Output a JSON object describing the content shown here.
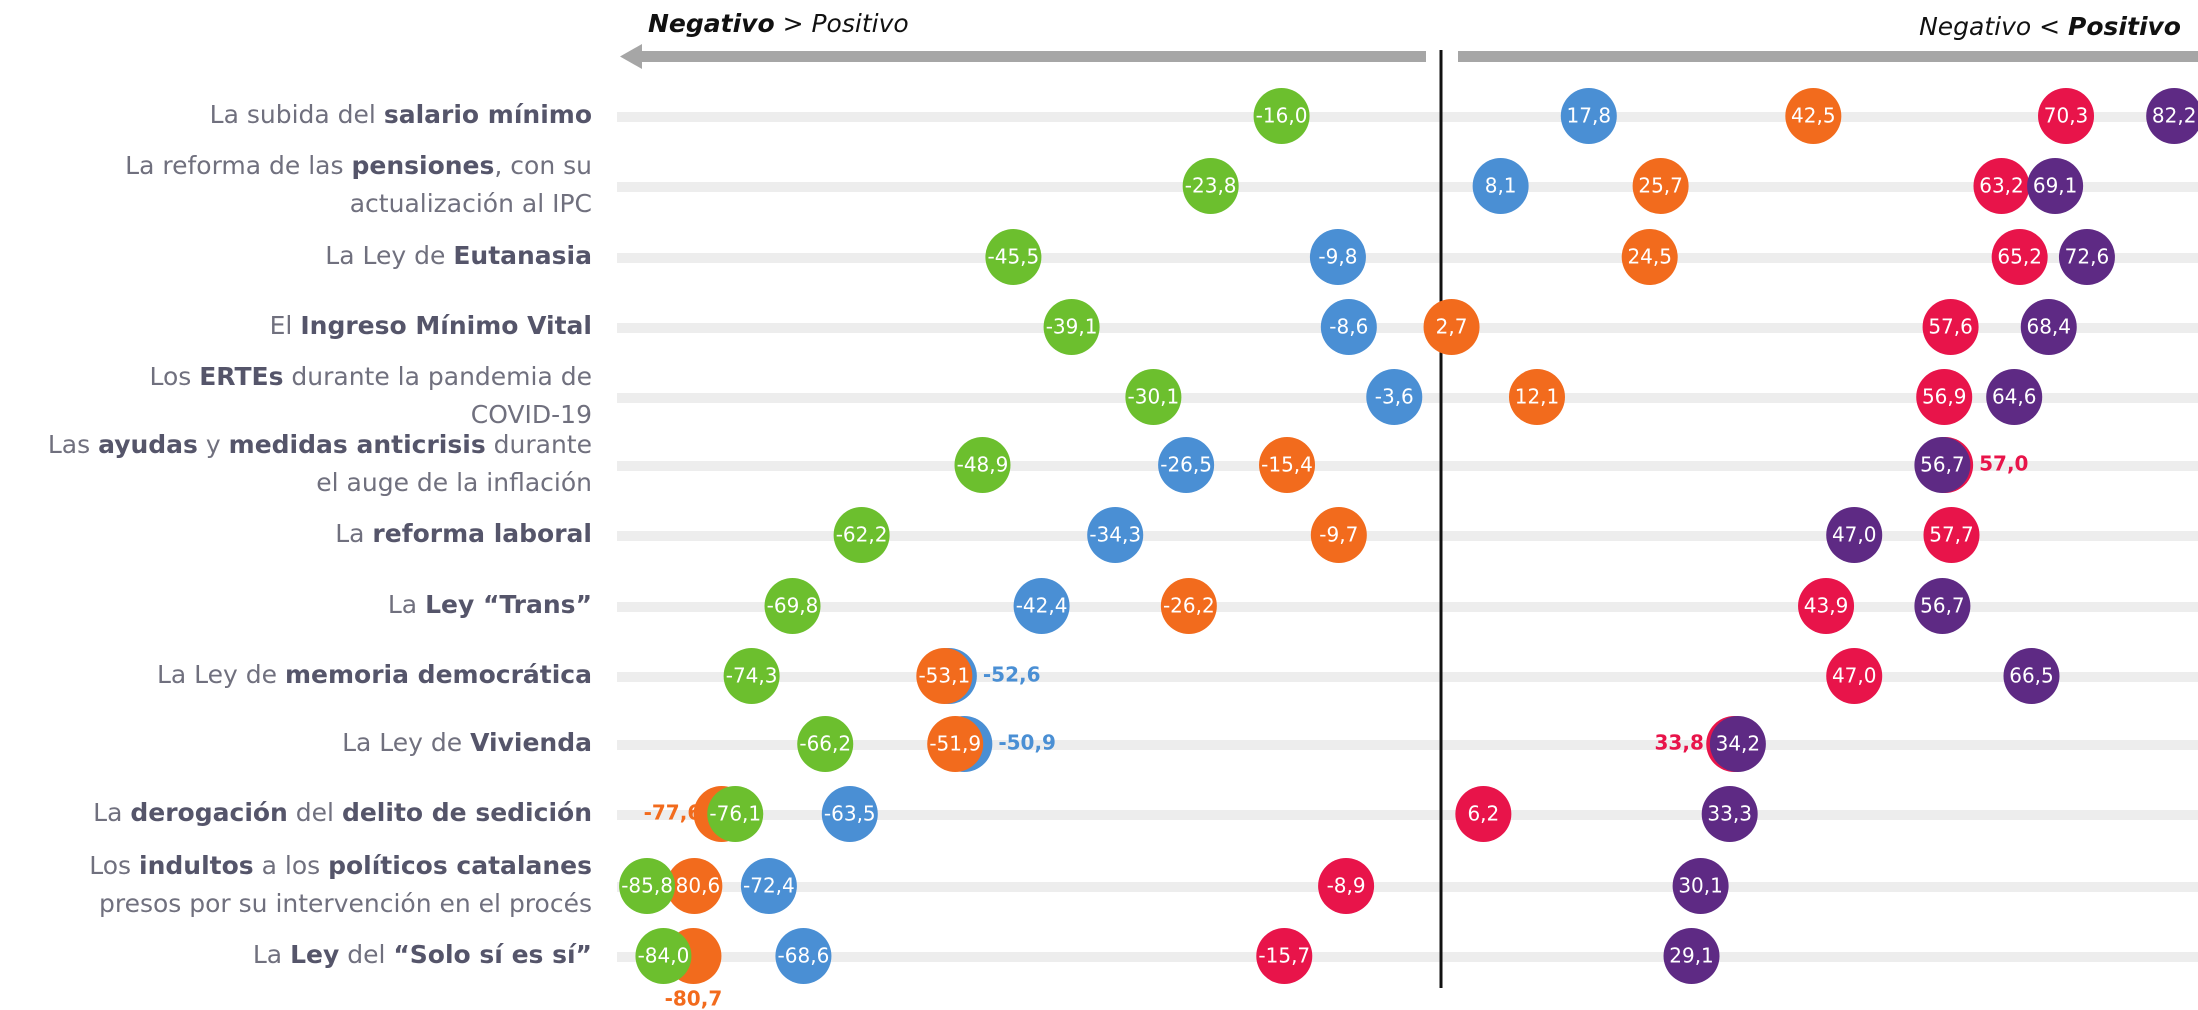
{
  "chart_data": {
    "type": "dot",
    "header_left": [
      {
        "text": "Negativo",
        "bold": true
      },
      {
        "text": " > Positivo"
      }
    ],
    "header_right": [
      {
        "text": "Negativo < "
      },
      {
        "text": "Positivo",
        "bold": true
      }
    ],
    "categories": [
      [
        [
          {
            "text": "La subida del "
          },
          {
            "text": "salario mínimo",
            "bold": true
          }
        ]
      ],
      [
        [
          {
            "text": "La reforma de las "
          },
          {
            "text": "pensiones",
            "bold": true
          },
          {
            "text": ", con su"
          }
        ],
        [
          {
            "text": "actualización al IPC"
          }
        ]
      ],
      [
        [
          {
            "text": "La Ley de "
          },
          {
            "text": "Eutanasia",
            "bold": true
          }
        ]
      ],
      [
        [
          {
            "text": "El "
          },
          {
            "text": "Ingreso Mínimo Vital",
            "bold": true
          }
        ]
      ],
      [
        [
          {
            "text": "Los "
          },
          {
            "text": "ERTEs",
            "bold": true
          },
          {
            "text": " durante la pandemia de"
          }
        ],
        [
          {
            "text": "COVID-19"
          }
        ]
      ],
      [
        [
          {
            "text": "Las "
          },
          {
            "text": "ayudas",
            "bold": true
          },
          {
            "text": " y "
          },
          {
            "text": "medidas anticrisis",
            "bold": true
          },
          {
            "text": " durante"
          }
        ],
        [
          {
            "text": "el auge de la inflación"
          }
        ]
      ],
      [
        [
          {
            "text": "La "
          },
          {
            "text": "reforma laboral",
            "bold": true
          }
        ]
      ],
      [
        [
          {
            "text": "La "
          },
          {
            "text": "Ley “Trans”",
            "bold": true
          }
        ]
      ],
      [
        [
          {
            "text": "La Ley de "
          },
          {
            "text": "memoria democrática",
            "bold": true
          }
        ]
      ],
      [
        [
          {
            "text": "La Ley de "
          },
          {
            "text": "Vivienda",
            "bold": true
          }
        ]
      ],
      [
        [
          {
            "text": "La "
          },
          {
            "text": "derogación",
            "bold": true
          },
          {
            "text": " del "
          },
          {
            "text": "delito de sedición",
            "bold": true
          }
        ]
      ],
      [
        [
          {
            "text": "Los "
          },
          {
            "text": "indultos",
            "bold": true
          },
          {
            "text": " a los "
          },
          {
            "text": "políticos catalanes",
            "bold": true
          }
        ],
        [
          {
            "text": "presos por su intervención en el procés"
          }
        ]
      ],
      [
        [
          {
            "text": "La "
          },
          {
            "text": "Ley",
            "bold": true
          },
          {
            "text": " del "
          },
          {
            "text": "“Solo sí es sí”",
            "bold": true
          }
        ]
      ]
    ],
    "xlim": [
      -100,
      100
    ],
    "series": [
      {
        "color": "#6cbf2e",
        "values": [
          -16.0,
          -23.8,
          -45.5,
          -39.1,
          -30.1,
          -48.9,
          -62.2,
          -69.8,
          -74.3,
          -66.2,
          -76.1,
          -85.8,
          -84.0
        ],
        "value_labels": [
          "-16,0",
          "-23,8",
          "-45,5",
          "-39,1",
          "-30,1",
          "-48,9",
          "-62,2",
          "-69,8",
          "-74,3",
          "-66,2",
          "-76,1",
          "-85,8",
          "-84,0"
        ]
      },
      {
        "color": "#4a8fd4",
        "values": [
          17.8,
          8.1,
          -9.8,
          -8.6,
          -3.6,
          -26.5,
          -34.3,
          -42.4,
          -52.6,
          -50.9,
          -63.5,
          -72.4,
          -68.6
        ],
        "value_labels": [
          "17,8",
          "8,1",
          "-9,8",
          "-8,6",
          "-3,6",
          "-26,5",
          "-34,3",
          "-42,4",
          "-52,6",
          "-50,9",
          "-63,5",
          "-72,4",
          "-68,6"
        ]
      },
      {
        "color": "#f26b1d",
        "values": [
          42.5,
          25.7,
          24.5,
          2.7,
          12.1,
          -15.4,
          -9.7,
          -26.2,
          -53.1,
          -51.9,
          -77.6,
          -80.6,
          -80.7
        ],
        "value_labels": [
          "42,5",
          "25,7",
          "24,5",
          "2,7",
          "12,1",
          "-15,4",
          "-9,7",
          "-26,2",
          "-53,1",
          "-51,9",
          "-77,6",
          "-80,6",
          "-80,7"
        ]
      },
      {
        "color": "#e8144a",
        "values": [
          70.3,
          63.2,
          65.2,
          57.6,
          56.9,
          57.0,
          57.7,
          43.9,
          47.0,
          33.8,
          6.2,
          -8.9,
          -15.7
        ],
        "value_labels": [
          "70,3",
          "63,2",
          "65,2",
          "57,6",
          "56,9",
          "57,0",
          "57,7",
          "43,9",
          "47,0",
          "33,8",
          "6,2",
          "-8,9",
          "-15,7"
        ]
      },
      {
        "color": "#5e2a84",
        "values": [
          82.2,
          69.1,
          72.6,
          68.4,
          64.6,
          56.7,
          47.0,
          56.7,
          66.5,
          34.2,
          33.3,
          30.1,
          29.1
        ],
        "value_labels": [
          "82,2",
          "69,1",
          "72,6",
          "68,4",
          "64,6",
          "56,7",
          "47,0",
          "56,7",
          "66,5",
          "34,2",
          "33,3",
          "30,1",
          "29,1"
        ]
      }
    ]
  }
}
